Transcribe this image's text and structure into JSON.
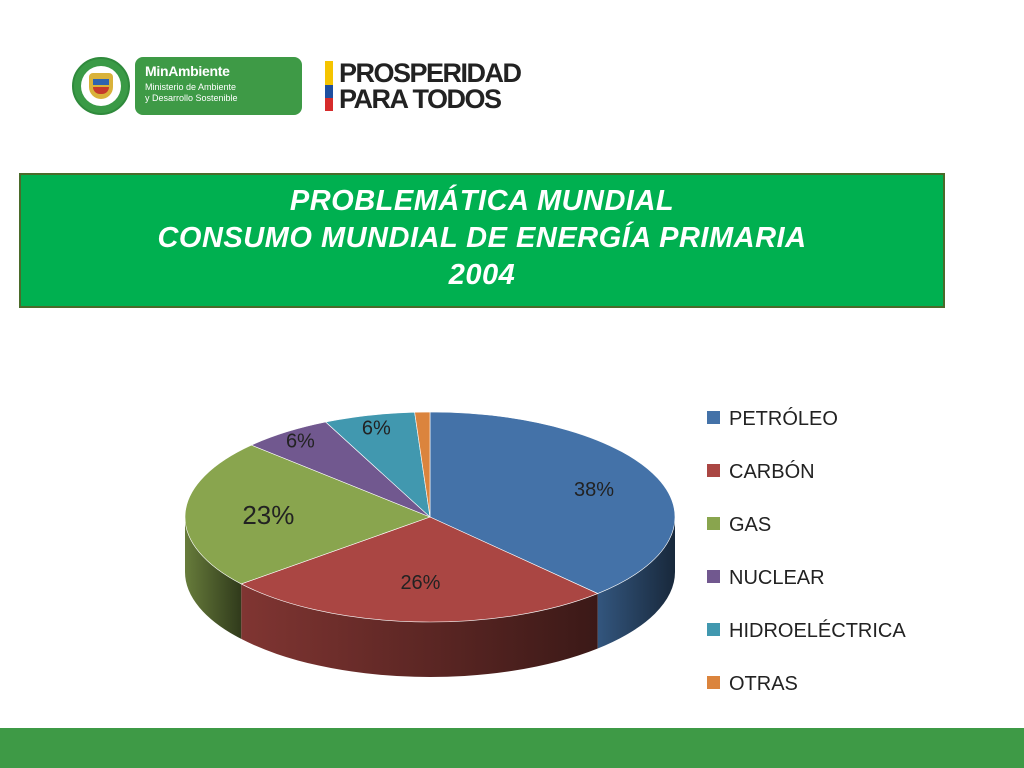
{
  "logos": {
    "minambiente_title": "MinAmbiente",
    "minambiente_subtitle_1": "Ministerio de Ambiente",
    "minambiente_subtitle_2": "y Desarrollo Sostenible",
    "prosperidad_line_1": "PROSPERIDAD",
    "prosperidad_line_2": "PARA TODOS",
    "flag_colors": [
      "#f5c400",
      "#1e4fa0",
      "#d62b2b"
    ]
  },
  "title": {
    "line_1": "PROBLEMÁTICA MUNDIAL",
    "line_2": "CONSUMO MUNDIAL DE ENERGÍA PRIMARIA",
    "line_3": "2004"
  },
  "chart_data": {
    "type": "pie",
    "style": "3d",
    "title": "",
    "categories": [
      "PETRÓLEO",
      "CARBÓN",
      "GAS",
      "NUCLEAR",
      "HIDROELÉCTRICA",
      "OTRAS"
    ],
    "values": [
      38,
      26,
      23,
      6,
      6,
      1
    ],
    "labels": [
      "38%",
      "26%",
      "23%",
      "6%",
      "6%",
      ""
    ],
    "colors": [
      "#4472a8",
      "#aa4643",
      "#89a54e",
      "#71588f",
      "#4198af",
      "#db843d"
    ],
    "legend_position": "right"
  }
}
